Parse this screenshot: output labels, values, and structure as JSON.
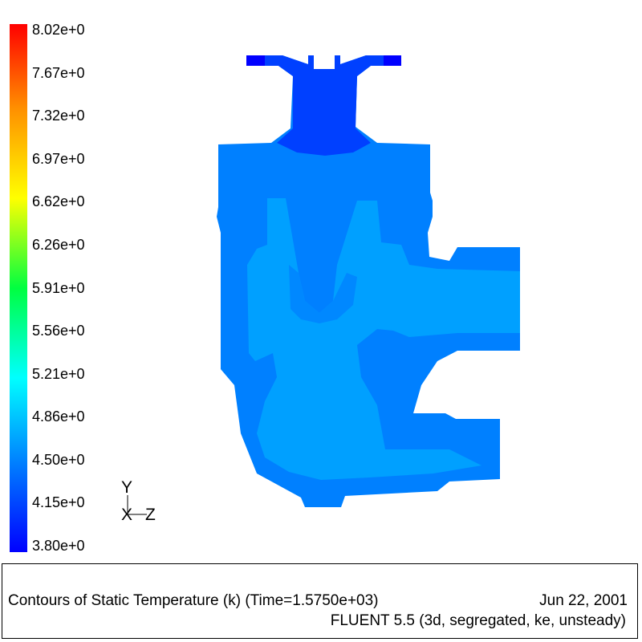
{
  "colorbar": {
    "labels": [
      "8.02e+0",
      "7.67e+0",
      "7.32e+0",
      "6.97e+0",
      "6.62e+0",
      "6.26e+0",
      "5.91e+0",
      "5.56e+0",
      "5.21e+0",
      "4.86e+0",
      "4.50e+0",
      "4.15e+0",
      "3.80e+0"
    ],
    "min": 3.8,
    "max": 8.02,
    "colormap": [
      "#0000ff",
      "#00a0ff",
      "#00ffff",
      "#00ff40",
      "#ffff00",
      "#ff8000",
      "#ff0000"
    ]
  },
  "axes": {
    "y_label": "Y",
    "x_label": "X",
    "z_label": "Z"
  },
  "field_colors": {
    "flange": "#0000ff",
    "neck": "#0040ff",
    "body": "#0080ff",
    "core": "#00a0ff"
  },
  "caption": {
    "title": "Contours of Static Temperature (k)  (Time=1.5750e+03)",
    "date": "Jun 22, 2001",
    "solver": "FLUENT 5.5 (3d, segregated, ke, unsteady)"
  }
}
